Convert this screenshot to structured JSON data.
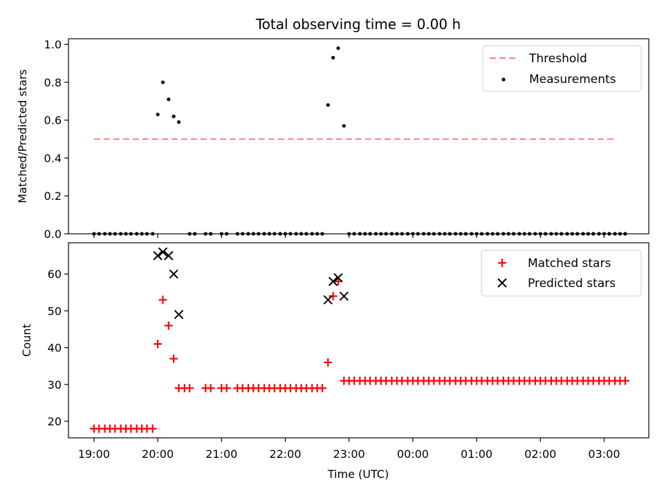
{
  "title": "Total observing time = 0.00 h",
  "xlabel": "Time (UTC)",
  "x_ticks": [
    "19:00",
    "20:00",
    "21:00",
    "22:00",
    "23:00",
    "00:00",
    "01:00",
    "02:00",
    "03:00"
  ],
  "chart_data": [
    {
      "type": "scatter",
      "ylabel": "Matched/Predicted stars",
      "xlim_hours": [
        18.6,
        27.7
      ],
      "ylim": [
        0.0,
        1.03
      ],
      "yticks": [
        0.0,
        0.2,
        0.4,
        0.6,
        0.8,
        1.0
      ],
      "legend_position": "top-right",
      "threshold": {
        "name": "Threshold",
        "y": 0.5,
        "x_range_hours": [
          19.0,
          27.2
        ],
        "color": "#ff7f7f",
        "style": "dashed"
      },
      "series": [
        {
          "name": "Measurements",
          "color": "#000000",
          "marker": "dot",
          "points": [
            [
              20.0,
              0.63
            ],
            [
              20.08,
              0.8
            ],
            [
              20.17,
              0.71
            ],
            [
              20.25,
              0.62
            ],
            [
              20.33,
              0.59
            ],
            [
              22.67,
              0.68
            ],
            [
              22.75,
              0.93
            ],
            [
              22.83,
              0.98
            ],
            [
              22.92,
              0.57
            ]
          ],
          "zero_points_x": [
            19.0,
            19.08,
            19.17,
            19.25,
            19.33,
            19.42,
            19.5,
            19.58,
            19.67,
            19.75,
            19.83,
            19.92,
            20.5,
            20.58,
            20.75,
            20.83,
            21.0,
            21.08,
            21.25,
            21.33,
            21.42,
            21.5,
            21.58,
            21.67,
            21.75,
            21.83,
            21.92,
            22.0,
            22.08,
            22.17,
            22.25,
            22.33,
            22.42,
            22.5,
            22.58,
            23.0,
            23.08,
            23.17,
            23.25,
            23.33,
            23.42,
            23.5,
            23.58,
            23.67,
            23.75,
            23.83,
            23.92,
            24.0,
            24.08,
            24.17,
            24.25,
            24.33,
            24.42,
            24.5,
            24.58,
            24.67,
            24.75,
            24.83,
            24.92,
            25.0,
            25.08,
            25.17,
            25.25,
            25.33,
            25.42,
            25.5,
            25.58,
            25.67,
            25.75,
            25.83,
            25.92,
            26.0,
            26.08,
            26.17,
            26.25,
            26.33,
            26.42,
            26.5,
            26.58,
            26.67,
            26.75,
            26.83,
            26.92,
            27.0,
            27.08,
            27.17,
            27.25,
            27.33
          ]
        }
      ]
    },
    {
      "type": "scatter",
      "ylabel": "Count",
      "xlim_hours": [
        18.6,
        27.7
      ],
      "ylim": [
        15.5,
        68.5
      ],
      "yticks": [
        20,
        30,
        40,
        50,
        60
      ],
      "legend_position": "top-right",
      "series": [
        {
          "name": "Matched stars",
          "color": "#ff0000",
          "marker": "plus",
          "points": [
            [
              19.0,
              18
            ],
            [
              19.08,
              18
            ],
            [
              19.17,
              18
            ],
            [
              19.25,
              18
            ],
            [
              19.33,
              18
            ],
            [
              19.42,
              18
            ],
            [
              19.5,
              18
            ],
            [
              19.58,
              18
            ],
            [
              19.67,
              18
            ],
            [
              19.75,
              18
            ],
            [
              19.83,
              18
            ],
            [
              19.92,
              18
            ],
            [
              20.0,
              41
            ],
            [
              20.08,
              53
            ],
            [
              20.17,
              46
            ],
            [
              20.25,
              37
            ],
            [
              20.33,
              29
            ],
            [
              20.42,
              29
            ],
            [
              20.5,
              29
            ],
            [
              20.75,
              29
            ],
            [
              20.83,
              29
            ],
            [
              21.0,
              29
            ],
            [
              21.08,
              29
            ],
            [
              21.25,
              29
            ],
            [
              21.33,
              29
            ],
            [
              21.42,
              29
            ],
            [
              21.5,
              29
            ],
            [
              21.58,
              29
            ],
            [
              21.67,
              29
            ],
            [
              21.75,
              29
            ],
            [
              21.83,
              29
            ],
            [
              21.92,
              29
            ],
            [
              22.0,
              29
            ],
            [
              22.08,
              29
            ],
            [
              22.17,
              29
            ],
            [
              22.25,
              29
            ],
            [
              22.33,
              29
            ],
            [
              22.42,
              29
            ],
            [
              22.5,
              29
            ],
            [
              22.58,
              29
            ],
            [
              22.67,
              36
            ],
            [
              22.75,
              54
            ],
            [
              22.83,
              58
            ],
            [
              22.92,
              31
            ],
            [
              23.0,
              31
            ],
            [
              23.08,
              31
            ],
            [
              23.17,
              31
            ],
            [
              23.25,
              31
            ],
            [
              23.33,
              31
            ],
            [
              23.42,
              31
            ],
            [
              23.5,
              31
            ],
            [
              23.58,
              31
            ],
            [
              23.67,
              31
            ],
            [
              23.75,
              31
            ],
            [
              23.83,
              31
            ],
            [
              23.92,
              31
            ],
            [
              24.0,
              31
            ],
            [
              24.08,
              31
            ],
            [
              24.17,
              31
            ],
            [
              24.25,
              31
            ],
            [
              24.33,
              31
            ],
            [
              24.42,
              31
            ],
            [
              24.5,
              31
            ],
            [
              24.58,
              31
            ],
            [
              24.67,
              31
            ],
            [
              24.75,
              31
            ],
            [
              24.83,
              31
            ],
            [
              24.92,
              31
            ],
            [
              25.0,
              31
            ],
            [
              25.08,
              31
            ],
            [
              25.17,
              31
            ],
            [
              25.25,
              31
            ],
            [
              25.33,
              31
            ],
            [
              25.42,
              31
            ],
            [
              25.5,
              31
            ],
            [
              25.58,
              31
            ],
            [
              25.67,
              31
            ],
            [
              25.75,
              31
            ],
            [
              25.83,
              31
            ],
            [
              25.92,
              31
            ],
            [
              26.0,
              31
            ],
            [
              26.08,
              31
            ],
            [
              26.17,
              31
            ],
            [
              26.25,
              31
            ],
            [
              26.33,
              31
            ],
            [
              26.42,
              31
            ],
            [
              26.5,
              31
            ],
            [
              26.58,
              31
            ],
            [
              26.67,
              31
            ],
            [
              26.75,
              31
            ],
            [
              26.83,
              31
            ],
            [
              26.92,
              31
            ],
            [
              27.0,
              31
            ],
            [
              27.08,
              31
            ],
            [
              27.17,
              31
            ],
            [
              27.25,
              31
            ],
            [
              27.33,
              31
            ]
          ]
        },
        {
          "name": "Predicted stars",
          "color": "#000000",
          "marker": "x",
          "points": [
            [
              20.0,
              65
            ],
            [
              20.08,
              66
            ],
            [
              20.17,
              65
            ],
            [
              20.25,
              60
            ],
            [
              20.33,
              49
            ],
            [
              22.67,
              53
            ],
            [
              22.75,
              58
            ],
            [
              22.83,
              59
            ],
            [
              22.92,
              54
            ]
          ]
        }
      ]
    }
  ]
}
